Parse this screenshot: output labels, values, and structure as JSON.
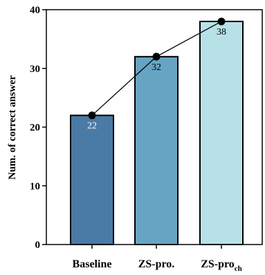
{
  "chart_data": {
    "type": "bar",
    "categories": [
      "Baseline",
      "ZS-pro.",
      "ZS-pro"
    ],
    "category_subscripts": [
      "",
      "",
      "ch"
    ],
    "values": [
      22,
      32,
      38
    ],
    "data_labels": [
      "22",
      "32",
      "38"
    ],
    "ylabel": "Num. of correct answer",
    "xlabel": "",
    "ylim": [
      0,
      40
    ],
    "yticks": [
      "0",
      "10",
      "20",
      "30",
      "40"
    ],
    "overlay_line": true,
    "grid": false,
    "legend": "none",
    "colors": {
      "bars": [
        "#4a7aa6",
        "#67a4c3",
        "#b7e1e7"
      ],
      "labels": [
        "#ffffff",
        "#000000",
        "#000000"
      ],
      "line": "#000000",
      "marker": "#000000"
    }
  }
}
